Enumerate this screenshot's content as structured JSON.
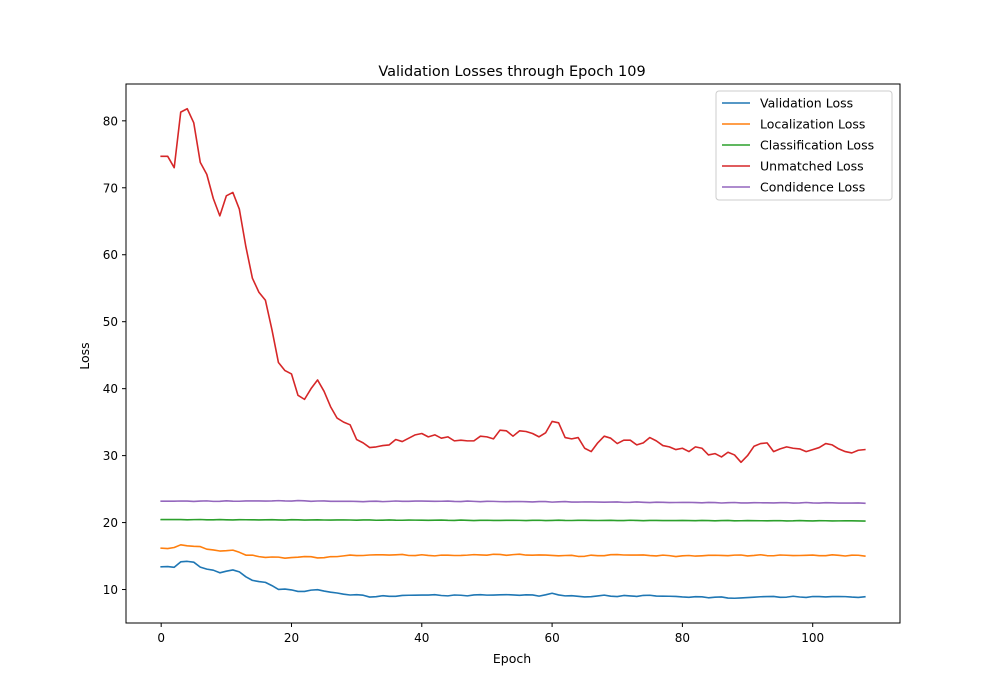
{
  "chart_data": {
    "type": "line",
    "title": "Validation Losses through Epoch 109",
    "xlabel": "Epoch",
    "ylabel": "Loss",
    "xlim": [
      -5.4,
      113.4
    ],
    "ylim": [
      5.0,
      85.5
    ],
    "xticks": [
      0,
      20,
      40,
      60,
      80,
      100
    ],
    "yticks": [
      10,
      20,
      30,
      40,
      50,
      60,
      70,
      80
    ],
    "grid": false,
    "legend_position": "top-right",
    "series": [
      {
        "name": "Validation Loss",
        "color": "#1f77b4",
        "anchors": [
          [
            0,
            13.4
          ],
          [
            1,
            13.4
          ],
          [
            2,
            13.3
          ],
          [
            3,
            14.2
          ],
          [
            4,
            14.2
          ],
          [
            5,
            14.0
          ],
          [
            6,
            13.4
          ],
          [
            7,
            13.1
          ],
          [
            8,
            12.8
          ],
          [
            9,
            12.5
          ],
          [
            10,
            12.8
          ],
          [
            11,
            12.9
          ],
          [
            12,
            12.6
          ],
          [
            13,
            11.9
          ],
          [
            14,
            11.4
          ],
          [
            15,
            11.2
          ],
          [
            16,
            11.0
          ],
          [
            17,
            10.6
          ],
          [
            18,
            10.1
          ],
          [
            19,
            10.0
          ],
          [
            20,
            9.9
          ],
          [
            22,
            9.7
          ],
          [
            24,
            10.0
          ],
          [
            26,
            9.6
          ],
          [
            28,
            9.3
          ],
          [
            30,
            9.2
          ],
          [
            32,
            8.95
          ],
          [
            35,
            9.0
          ],
          [
            40,
            9.2
          ],
          [
            45,
            9.1
          ],
          [
            50,
            9.2
          ],
          [
            55,
            9.2
          ],
          [
            58,
            9.1
          ],
          [
            60,
            9.35
          ],
          [
            62,
            9.1
          ],
          [
            65,
            8.9
          ],
          [
            68,
            9.1
          ],
          [
            70,
            9.0
          ],
          [
            75,
            9.1
          ],
          [
            80,
            8.9
          ],
          [
            85,
            8.85
          ],
          [
            89,
            8.7
          ],
          [
            92,
            8.95
          ],
          [
            95,
            8.9
          ],
          [
            100,
            8.9
          ],
          [
            103,
            8.95
          ],
          [
            108,
            8.85
          ]
        ],
        "noise": 0.06
      },
      {
        "name": "Localization Loss",
        "color": "#ff7f0e",
        "anchors": [
          [
            0,
            16.1
          ],
          [
            1,
            16.2
          ],
          [
            2,
            16.3
          ],
          [
            3,
            16.6
          ],
          [
            5,
            16.5
          ],
          [
            6,
            16.4
          ],
          [
            7,
            16.0
          ],
          [
            8,
            15.9
          ],
          [
            9,
            15.8
          ],
          [
            11,
            15.8
          ],
          [
            12,
            15.6
          ],
          [
            13,
            15.2
          ],
          [
            15,
            14.9
          ],
          [
            18,
            14.8
          ],
          [
            19,
            14.7
          ],
          [
            20,
            14.8
          ],
          [
            23,
            14.9
          ],
          [
            25,
            14.7
          ],
          [
            27,
            15.0
          ],
          [
            30,
            15.1
          ],
          [
            35,
            15.2
          ],
          [
            40,
            15.1
          ],
          [
            45,
            15.1
          ],
          [
            50,
            15.2
          ],
          [
            55,
            15.2
          ],
          [
            60,
            15.1
          ],
          [
            65,
            15.0
          ],
          [
            70,
            15.2
          ],
          [
            75,
            15.1
          ],
          [
            80,
            15.0
          ],
          [
            85,
            15.1
          ],
          [
            90,
            15.1
          ],
          [
            95,
            15.1
          ],
          [
            100,
            15.1
          ],
          [
            105,
            15.1
          ],
          [
            108,
            15.05
          ]
        ],
        "noise": 0.06
      },
      {
        "name": "Classification Loss",
        "color": "#2ca02c",
        "anchors": [
          [
            0,
            20.45
          ],
          [
            10,
            20.42
          ],
          [
            30,
            20.38
          ],
          [
            50,
            20.33
          ],
          [
            70,
            20.32
          ],
          [
            90,
            20.28
          ],
          [
            108,
            20.25
          ]
        ],
        "noise": 0.02
      },
      {
        "name": "Unmatched Loss",
        "color": "#d62728",
        "anchors": [
          [
            0,
            74.7
          ],
          [
            1,
            74.7
          ],
          [
            2,
            73.0
          ],
          [
            3,
            81.3
          ],
          [
            4,
            81.8
          ],
          [
            5,
            79.7
          ],
          [
            6,
            73.8
          ],
          [
            7,
            72.0
          ],
          [
            8,
            68.4
          ],
          [
            9,
            65.8
          ],
          [
            10,
            68.8
          ],
          [
            11,
            69.3
          ],
          [
            12,
            66.8
          ],
          [
            13,
            61.2
          ],
          [
            14,
            56.5
          ],
          [
            15,
            54.4
          ],
          [
            16,
            53.2
          ],
          [
            17,
            48.8
          ],
          [
            18,
            43.9
          ],
          [
            19,
            42.7
          ],
          [
            20,
            42.2
          ],
          [
            21,
            39.0
          ],
          [
            22,
            38.4
          ],
          [
            23,
            40.0
          ],
          [
            24,
            41.3
          ],
          [
            25,
            39.6
          ],
          [
            26,
            37.3
          ],
          [
            27,
            35.6
          ],
          [
            28,
            35.0
          ],
          [
            29,
            34.6
          ],
          [
            30,
            32.4
          ],
          [
            31,
            31.9
          ],
          [
            32,
            31.2
          ],
          [
            33,
            31.3
          ],
          [
            34,
            31.5
          ],
          [
            35,
            31.6
          ],
          [
            36,
            32.4
          ],
          [
            37,
            32.1
          ],
          [
            38,
            32.6
          ],
          [
            39,
            33.1
          ],
          [
            40,
            33.3
          ],
          [
            41,
            32.8
          ],
          [
            42,
            33.1
          ],
          [
            43,
            32.6
          ],
          [
            44,
            32.8
          ],
          [
            45,
            32.2
          ],
          [
            46,
            32.3
          ],
          [
            47,
            32.2
          ],
          [
            48,
            32.2
          ],
          [
            49,
            32.9
          ],
          [
            50,
            32.8
          ],
          [
            51,
            32.5
          ],
          [
            52,
            33.8
          ],
          [
            53,
            33.7
          ],
          [
            54,
            32.9
          ],
          [
            55,
            33.7
          ],
          [
            56,
            33.6
          ],
          [
            57,
            33.3
          ],
          [
            58,
            32.8
          ],
          [
            59,
            33.4
          ],
          [
            60,
            35.1
          ],
          [
            61,
            34.9
          ],
          [
            62,
            32.7
          ],
          [
            63,
            32.5
          ],
          [
            64,
            32.7
          ],
          [
            65,
            31.1
          ],
          [
            66,
            30.6
          ],
          [
            67,
            31.9
          ],
          [
            68,
            32.9
          ],
          [
            69,
            32.6
          ],
          [
            70,
            31.8
          ],
          [
            71,
            32.3
          ],
          [
            72,
            32.3
          ],
          [
            73,
            31.6
          ],
          [
            74,
            31.9
          ],
          [
            75,
            32.7
          ],
          [
            76,
            32.2
          ],
          [
            77,
            31.5
          ],
          [
            78,
            31.3
          ],
          [
            79,
            30.9
          ],
          [
            80,
            31.1
          ],
          [
            81,
            30.6
          ],
          [
            82,
            31.3
          ],
          [
            83,
            31.1
          ],
          [
            84,
            30.1
          ],
          [
            85,
            30.3
          ],
          [
            86,
            29.8
          ],
          [
            87,
            30.5
          ],
          [
            88,
            30.1
          ],
          [
            89,
            29.0
          ],
          [
            90,
            30.0
          ],
          [
            91,
            31.4
          ],
          [
            92,
            31.8
          ],
          [
            93,
            31.9
          ],
          [
            94,
            30.6
          ],
          [
            95,
            31.0
          ],
          [
            96,
            31.3
          ],
          [
            97,
            31.1
          ],
          [
            98,
            31.0
          ],
          [
            99,
            30.6
          ],
          [
            100,
            30.9
          ],
          [
            101,
            31.2
          ],
          [
            102,
            31.8
          ],
          [
            103,
            31.6
          ],
          [
            104,
            31.0
          ],
          [
            105,
            30.6
          ],
          [
            106,
            30.4
          ],
          [
            107,
            30.8
          ],
          [
            108,
            30.9
          ]
        ],
        "noise": 0
      },
      {
        "name": "Condidence Loss",
        "color": "#9467bd",
        "anchors": [
          [
            0,
            23.2
          ],
          [
            10,
            23.2
          ],
          [
            20,
            23.25
          ],
          [
            30,
            23.15
          ],
          [
            40,
            23.2
          ],
          [
            50,
            23.15
          ],
          [
            60,
            23.1
          ],
          [
            70,
            23.05
          ],
          [
            80,
            23.0
          ],
          [
            90,
            22.95
          ],
          [
            100,
            22.95
          ],
          [
            108,
            22.9
          ]
        ],
        "noise": 0.03
      }
    ]
  }
}
